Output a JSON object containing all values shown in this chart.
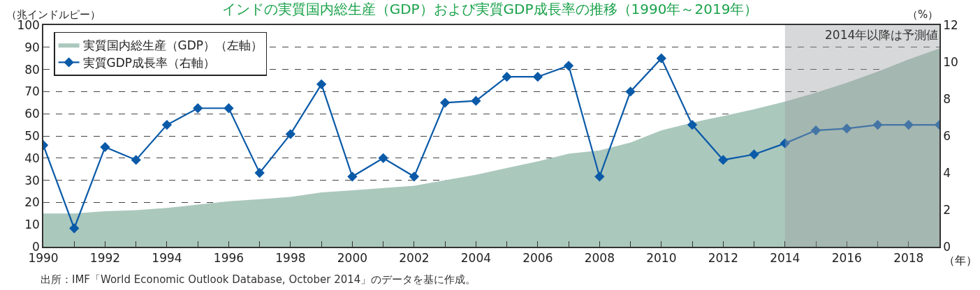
{
  "chart_data": {
    "type": "area",
    "title": "インドの実質国内総生産（GDP）および実質GDP成長率の推移（1990年～2019年）",
    "ylabel": "（兆インドルピー）",
    "y2label": "（%）",
    "xlabel": "（年）",
    "x": [
      1990,
      1991,
      1992,
      1993,
      1994,
      1995,
      1996,
      1997,
      1998,
      1999,
      2000,
      2001,
      2002,
      2003,
      2004,
      2005,
      2006,
      2007,
      2008,
      2009,
      2010,
      2011,
      2012,
      2013,
      2014,
      2015,
      2016,
      2017,
      2018,
      2019
    ],
    "series": [
      {
        "name": "実質国内総生産（GDP）（左軸）",
        "color": "#abc8bd",
        "values": [
          15,
          15,
          16,
          16.5,
          17.5,
          19,
          20.5,
          21.5,
          22.5,
          24.5,
          25.5,
          26.5,
          27.5,
          30,
          32.5,
          35.5,
          38.5,
          42,
          43.5,
          47,
          52.5,
          56,
          59,
          62,
          65.5,
          69.5,
          74,
          79,
          84.5,
          89.5
        ]
      },
      {
        "name": "実質GDP成長率（右軸）",
        "type": "line",
        "axis": "y2",
        "color": "#0a5aa8",
        "marker": "diamond",
        "values": [
          5.5,
          1.0,
          5.4,
          4.7,
          6.6,
          7.5,
          7.5,
          4.0,
          6.1,
          8.8,
          3.8,
          4.8,
          3.8,
          7.8,
          7.9,
          9.2,
          9.2,
          9.8,
          3.8,
          8.4,
          10.2,
          6.6,
          4.7,
          5.0,
          5.6,
          6.3,
          6.4,
          6.6,
          6.6,
          6.6
        ]
      }
    ],
    "xlim": [
      1990,
      2019
    ],
    "xticks": [
      1990,
      {
        "value": 1991,
        "label": null
      },
      1992,
      {
        "value": 1993,
        "label": null
      },
      1994,
      {
        "value": 1995,
        "label": null
      },
      1996,
      {
        "value": 1997,
        "label": null
      },
      1998,
      {
        "value": 1999,
        "label": null
      },
      2000,
      {
        "value": 2001,
        "label": null
      },
      2002,
      {
        "value": 2003,
        "label": null
      },
      2004,
      {
        "value": 2005,
        "label": null
      },
      2006,
      {
        "value": 2007,
        "label": null
      },
      2008,
      {
        "value": 2009,
        "label": null
      },
      2010,
      {
        "value": 2011,
        "label": null
      },
      2012,
      {
        "value": 2013,
        "label": null
      },
      2014,
      {
        "value": 2015,
        "label": null
      },
      2016,
      {
        "value": 2017,
        "label": null
      },
      2018
    ],
    "ylim": [
      0,
      100
    ],
    "yticks": [
      0,
      10,
      20,
      30,
      40,
      50,
      60,
      70,
      80,
      90,
      100
    ],
    "y2lim": [
      0,
      12
    ],
    "y2ticks": [
      0,
      2,
      4,
      6,
      8,
      10,
      12
    ],
    "grid": "y",
    "legend": "top left",
    "bands": [
      {
        "axis": "x",
        "from": 2014,
        "to": 2019,
        "label": "2014年以降は予測値",
        "color": "#9a9ea0"
      }
    ],
    "annotations": [
      "出所：IMF「World Economic Outlook Database, October 2014」のデータを基に作成。"
    ]
  }
}
